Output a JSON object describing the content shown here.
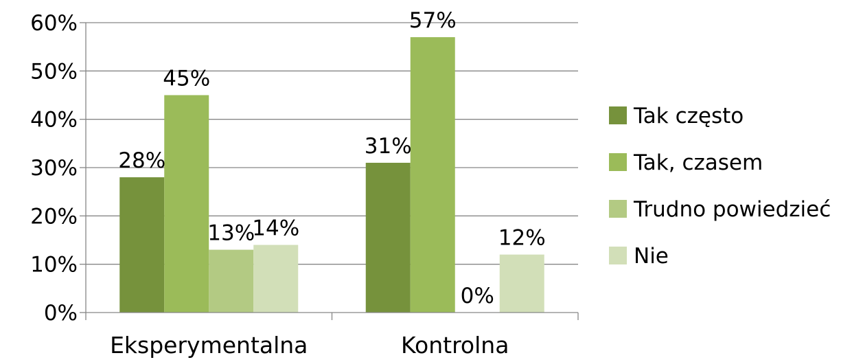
{
  "chart_data": {
    "type": "bar",
    "title": "",
    "xlabel": "",
    "ylabel": "",
    "ylim": [
      0,
      0.6
    ],
    "y_ticks": [
      0,
      0.1,
      0.2,
      0.3,
      0.4,
      0.5,
      0.6
    ],
    "y_tick_labels": [
      "0%",
      "10%",
      "20%",
      "30%",
      "40%",
      "50%",
      "60%"
    ],
    "grid": true,
    "legend_position": "right",
    "categories": [
      "Eksperymentalna",
      "Kontrolna"
    ],
    "series": [
      {
        "name": "Tak często",
        "color": "#76923c",
        "values": [
          0.28,
          0.31
        ],
        "labels": [
          "28%",
          "31%"
        ]
      },
      {
        "name": "Tak, czasem",
        "color": "#9bbb59",
        "values": [
          0.45,
          0.57
        ],
        "labels": [
          "45%",
          "57%"
        ]
      },
      {
        "name": "Trudno powiedzieć",
        "color": "#b3ca83",
        "values": [
          0.13,
          0.0
        ],
        "labels": [
          "13%",
          "0%"
        ]
      },
      {
        "name": "Nie",
        "color": "#d2dfb8",
        "values": [
          0.14,
          0.12
        ],
        "labels": [
          "14%",
          "12%"
        ]
      }
    ]
  }
}
